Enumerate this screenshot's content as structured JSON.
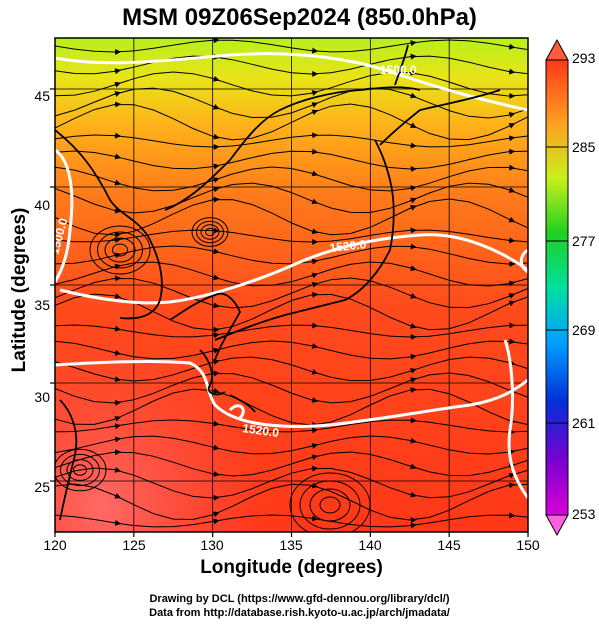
{
  "title": "MSM 09Z06Sep2024 (850.0hPa)",
  "xlabel": "Longitude (degrees)",
  "ylabel": "Latitude  (degrees)",
  "credit_line1": "Drawing by DCL (https://www.gfd-dennou.org/library/dcl/)",
  "credit_line2": "Data from http://database.rish.kyoto-u.ac.jp/arch/jmadata/",
  "x_ticks": [
    "120",
    "125",
    "130",
    "135",
    "140",
    "145",
    "150"
  ],
  "y_ticks": [
    "25",
    "30",
    "35",
    "40",
    "45"
  ],
  "colorbar_ticks": [
    "293",
    "285",
    "277",
    "269",
    "261",
    "253"
  ],
  "contour_labels": [
    "1500.0",
    "1520.0",
    "1520.0",
    "1500.0"
  ],
  "colors": {
    "warm": "#ff3b1a",
    "mid": "#ff7a1a",
    "cool_north": "#c8f01e",
    "contour": "#ffffff",
    "coast": "#000000"
  },
  "chart_data": {
    "type": "heatmap",
    "title": "MSM 09Z06Sep2024 (850.0hPa)",
    "xlabel": "Longitude (degrees)",
    "ylabel": "Latitude  (degrees)",
    "xlim": [
      120,
      150
    ],
    "ylim": [
      22.4,
      47.6
    ],
    "x_ticks": [
      120,
      125,
      130,
      135,
      140,
      145,
      150
    ],
    "y_ticks": [
      25,
      30,
      35,
      40,
      45
    ],
    "colorbar": {
      "min": 253,
      "max": 293,
      "ticks": [
        293,
        285,
        277,
        269,
        261,
        253
      ]
    },
    "contour_levels": [
      1500,
      1520
    ],
    "grid": true
  }
}
